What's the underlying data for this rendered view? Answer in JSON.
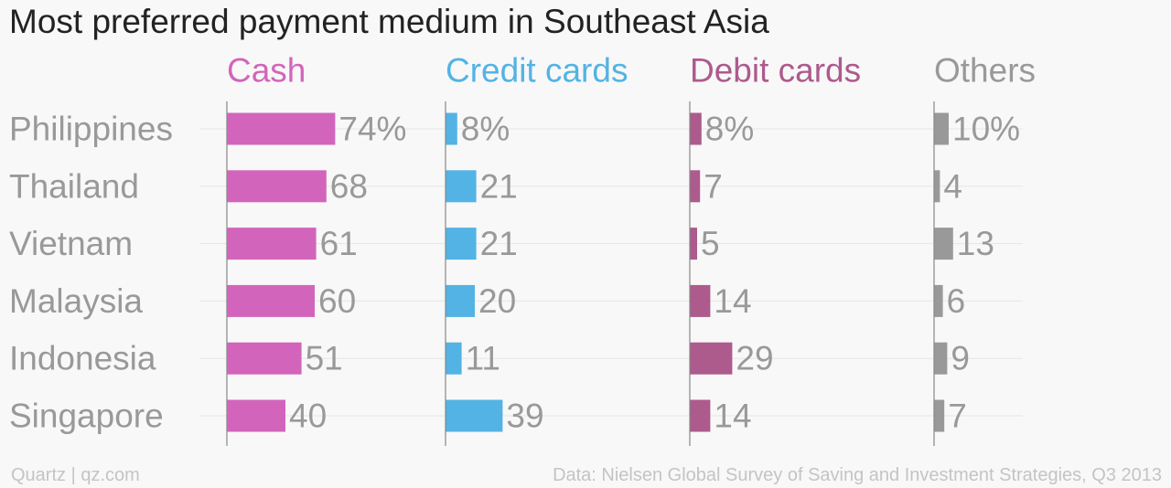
{
  "chart_data": {
    "type": "bar",
    "orientation": "horizontal",
    "title": "Most preferred payment medium in Southeast Asia",
    "categories": [
      "Philippines",
      "Thailand",
      "Vietnam",
      "Malaysia",
      "Indonesia",
      "Singapore"
    ],
    "series": [
      {
        "name": "Cash",
        "color": "#d265bb",
        "values": [
          74,
          68,
          61,
          60,
          51,
          40
        ]
      },
      {
        "name": "Credit cards",
        "color": "#53b3e4",
        "values": [
          8,
          21,
          21,
          20,
          11,
          39
        ]
      },
      {
        "name": "Debit cards",
        "color": "#ad5a8c",
        "values": [
          8,
          7,
          5,
          14,
          29,
          14
        ]
      },
      {
        "name": "Others",
        "color": "#999999",
        "values": [
          10,
          4,
          13,
          6,
          9,
          7
        ]
      }
    ],
    "value_labels": [
      [
        "74%",
        "68",
        "61",
        "60",
        "51",
        "40"
      ],
      [
        "8%",
        "21",
        "21",
        "20",
        "11",
        "39"
      ],
      [
        "8%",
        "7",
        "5",
        "14",
        "29",
        "14"
      ],
      [
        "10%",
        "4",
        "13",
        "6",
        "9",
        "7"
      ]
    ],
    "unit": "%",
    "layout": "small multiples, one panel per series",
    "grid": true,
    "xlim": [
      0,
      100
    ]
  },
  "footer": {
    "source_left": "Quartz | qz.com",
    "source_right": "Data: Nielsen Global Survey of Saving and Investment Strategies, Q3 2013"
  }
}
